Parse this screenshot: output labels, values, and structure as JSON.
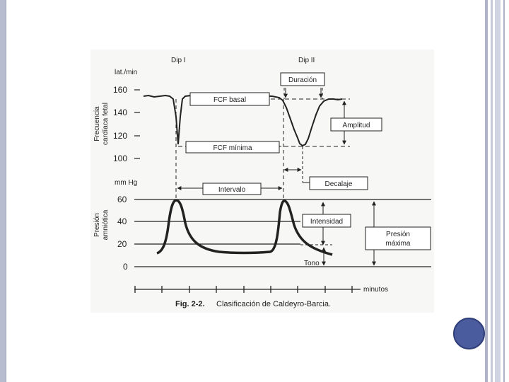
{
  "diagram": {
    "header": {
      "dip1": "Dip I",
      "dip2": "Dip II"
    },
    "fhr_axis": {
      "unit": "lat./min",
      "title": [
        "Frecuencia",
        "cardíaca fetal"
      ],
      "ticks": [
        "160",
        "140",
        "120",
        "100"
      ]
    },
    "pressure_axis": {
      "unit": "mm Hg",
      "title": [
        "Presión",
        "amniótica"
      ],
      "ticks": [
        "60",
        "40",
        "20",
        "0"
      ]
    },
    "labels": {
      "fcf_basal": "FCF basal",
      "fcf_minima": "FCF mínima",
      "duracion": "Duración",
      "amplitud": "Amplitud",
      "decalaje": "Decalaje",
      "intervalo": "Intervalo",
      "intensidad": "Intensidad",
      "presion_maxima": [
        "Presión",
        "máxima"
      ],
      "tono": "Tono",
      "minutos": "minutos"
    },
    "caption": {
      "number": "Fig. 2-2.",
      "text": "Clasificación de Caldeyro-Barcia."
    }
  }
}
